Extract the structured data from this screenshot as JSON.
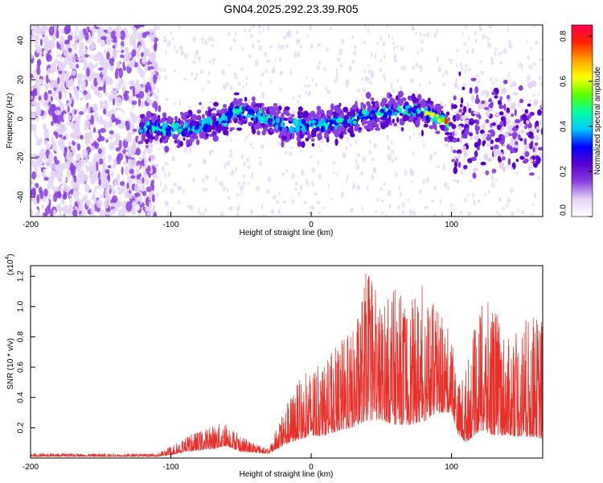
{
  "title": "GN04.2025.292.23.39.R05",
  "chart_data": [
    {
      "type": "heatmap",
      "xlabel": "Height of straight line (km)",
      "ylabel": "Frequency (Hz)",
      "xlim": [
        -200,
        165
      ],
      "ylim": [
        -50,
        48
      ],
      "xticks": [
        -200,
        -100,
        0,
        100
      ],
      "xtick_labels": [
        "-200",
        "-100",
        "0",
        "100"
      ],
      "yticks": [
        -40,
        -20,
        0,
        20,
        40
      ],
      "ytick_labels": [
        "-40",
        "-20",
        "0",
        "20",
        "40"
      ],
      "colorbar": {
        "label": "Normalized spectral amplitude",
        "range": [
          0.0,
          0.85
        ],
        "ticks": [
          0.0,
          0.2,
          0.4,
          0.6,
          0.8
        ],
        "tick_labels": [
          "0.0",
          "0.2",
          "0.4",
          "0.6",
          "0.8"
        ],
        "colors": [
          "#ffffff",
          "#e3d4f5",
          "#8a3fe0",
          "#5a00d0",
          "#0000ff",
          "#00c8ff",
          "#00ffa0",
          "#5cff00",
          "#ffff00",
          "#ffa000",
          "#ff2000",
          "#ff0050"
        ]
      },
      "ridge": {
        "x": [
          -120,
          -100,
          -80,
          -60,
          -55,
          -40,
          -20,
          0,
          20,
          40,
          60,
          80,
          95,
          100
        ],
        "y": [
          -4,
          -6,
          -4,
          0,
          4,
          2,
          -3,
          -4,
          -2,
          2,
          4,
          4,
          -1,
          -5
        ]
      },
      "legend": "none"
    },
    {
      "type": "line",
      "xlabel": "Height of straight line (km)",
      "ylabel": "SNR (10 * v/v)",
      "yscale_label": "(x10",
      "yscale_exp": "4",
      "xlim": [
        -200,
        165
      ],
      "ylim": [
        0,
        1.27
      ],
      "xticks": [
        -200,
        -100,
        0,
        100
      ],
      "xtick_labels": [
        "-200",
        "-100",
        "0",
        "100"
      ],
      "yticks": [
        0.2,
        0.4,
        0.6,
        0.8,
        1.0,
        1.2
      ],
      "ytick_labels": [
        "0.2",
        "0.4",
        "0.6",
        "0.8",
        "1.0",
        "1.2"
      ],
      "color": "#e8302b",
      "envelope": {
        "x": [
          -200,
          -110,
          -100,
          -90,
          -70,
          -60,
          -50,
          -30,
          -20,
          -10,
          0,
          10,
          20,
          30,
          40,
          50,
          60,
          70,
          80,
          90,
          100,
          105,
          110,
          120,
          130,
          140,
          150,
          160,
          165
        ],
        "base": [
          0.01,
          0.01,
          0.02,
          0.04,
          0.06,
          0.08,
          0.04,
          0.03,
          0.08,
          0.12,
          0.14,
          0.15,
          0.18,
          0.2,
          0.25,
          0.25,
          0.22,
          0.22,
          0.24,
          0.3,
          0.3,
          0.15,
          0.1,
          0.18,
          0.15,
          0.15,
          0.14,
          0.14,
          0.12
        ],
        "peak": [
          0.03,
          0.03,
          0.08,
          0.14,
          0.22,
          0.24,
          0.14,
          0.06,
          0.32,
          0.5,
          0.6,
          0.62,
          0.78,
          0.85,
          1.27,
          1.02,
          1.13,
          1.02,
          1.15,
          0.98,
          0.82,
          0.5,
          0.6,
          1.0,
          1.05,
          0.78,
          0.9,
          0.95,
          0.95
        ]
      },
      "legend": "none"
    }
  ]
}
